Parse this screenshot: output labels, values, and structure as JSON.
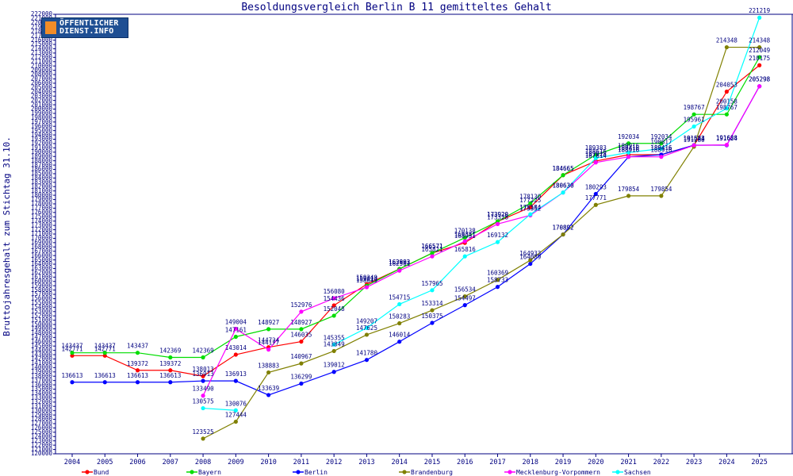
{
  "brand": {
    "logo_line1": "ÖFFENTLICHER",
    "logo_line2": "DIENST.INFO"
  },
  "chart_data": {
    "type": "line",
    "title": "Besoldungsvergleich Berlin B 11 gemitteltes Gehalt",
    "ylabel": "Bruttojahresgehalt zum Stichtag 31.10.",
    "xlabel": "",
    "ylim": [
      120000,
      222000
    ],
    "ytick_step": 1000,
    "grid": false,
    "legend_position": "bottom",
    "x": [
      "2004",
      "2005",
      "2006",
      "2007",
      "2008",
      "2009",
      "2010",
      "2011",
      "2012",
      "2013",
      "2014",
      "2015",
      "2016",
      "2017",
      "2018",
      "2019",
      "2020",
      "2021",
      "2022",
      "2023",
      "2024",
      "2025"
    ],
    "series": [
      {
        "name": "Bund",
        "color": "#ff0000",
        "values": [
          142771,
          142771,
          139372,
          139372,
          138013,
          143014,
          144724,
          146035,
          154436,
          159349,
          162902,
          166571,
          168951,
          173920,
          177225,
          184665,
          187928,
          189416,
          189416,
          191583,
          204053,
          210175
        ]
      },
      {
        "name": "Bayern",
        "color": "#00dd00",
        "values": [
          143437,
          143437,
          143437,
          142369,
          142369,
          147161,
          148927,
          148927,
          152048,
          159014,
          162893,
          166571,
          170138,
          173920,
          178130,
          184665,
          189383,
          192034,
          192034,
          198767,
          198767,
          212049
        ]
      },
      {
        "name": "Berlin",
        "color": "#0000ff",
        "values": [
          136613,
          136613,
          136613,
          136613,
          136913,
          136913,
          133639,
          136299,
          139012,
          141780,
          146014,
          150375,
          154497,
          158733,
          164089,
          170892,
          180293,
          188916,
          189416,
          191624,
          191624,
          205298
        ]
      },
      {
        "name": "Brandenburg",
        "color": "#808000",
        "values": [
          null,
          null,
          null,
          null,
          123525,
          127444,
          138883,
          140967,
          143849,
          147625,
          150283,
          153314,
          156534,
          160369,
          164933,
          170892,
          177771,
          179854,
          179854,
          191280,
          214348,
          214348
        ]
      },
      {
        "name": "Mecklenburg-Vorpommern",
        "color": "#ff00ff",
        "values": [
          null,
          null,
          null,
          null,
          133490,
          149004,
          144177,
          152976,
          156080,
          158649,
          162501,
          165821,
          169331,
          173328,
          175352,
          180630,
          187614,
          188916,
          188916,
          191583,
          191688,
          205298
        ]
      },
      {
        "name": "Sachsen",
        "color": "#00ffff",
        "values": [
          null,
          null,
          null,
          null,
          130575,
          130076,
          null,
          null,
          145355,
          149207,
          154715,
          157965,
          165816,
          169132,
          175584,
          180630,
          188616,
          189916,
          190817,
          195961,
          200158,
          221219
        ]
      }
    ]
  }
}
